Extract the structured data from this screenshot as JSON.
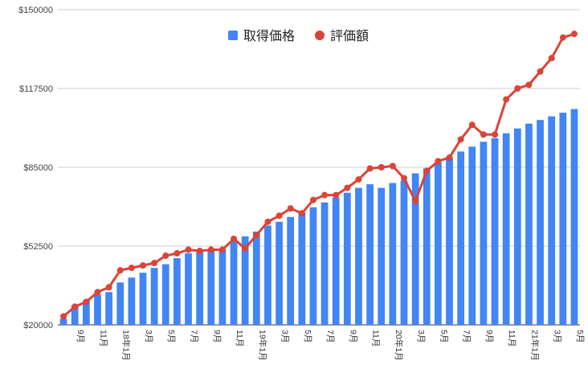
{
  "chart_data": {
    "type": "bar",
    "title": "",
    "xlabel": "",
    "ylabel": "",
    "ylim": [
      20000,
      150000
    ],
    "y_ticks": [
      "$150000",
      "$117500",
      "$85000",
      "$52500",
      "$20000"
    ],
    "y_tick_values": [
      150000,
      117500,
      85000,
      52500,
      20000
    ],
    "grid": true,
    "legend_position": "top-center",
    "x_tick_labels": [
      {
        "index": 1,
        "label": "9月"
      },
      {
        "index": 3,
        "label": "11月"
      },
      {
        "index": 5,
        "label": "18年1月"
      },
      {
        "index": 7,
        "label": "3月"
      },
      {
        "index": 9,
        "label": "5月"
      },
      {
        "index": 11,
        "label": "7月"
      },
      {
        "index": 13,
        "label": "9月"
      },
      {
        "index": 15,
        "label": "11月"
      },
      {
        "index": 17,
        "label": "19年1月"
      },
      {
        "index": 19,
        "label": "3月"
      },
      {
        "index": 21,
        "label": "5月"
      },
      {
        "index": 23,
        "label": "7月"
      },
      {
        "index": 25,
        "label": "9月"
      },
      {
        "index": 27,
        "label": "11月"
      },
      {
        "index": 29,
        "label": "20年1月"
      },
      {
        "index": 31,
        "label": "3月"
      },
      {
        "index": 33,
        "label": "5月"
      },
      {
        "index": 35,
        "label": "7月"
      },
      {
        "index": 37,
        "label": "9月"
      },
      {
        "index": 39,
        "label": "11月"
      },
      {
        "index": 41,
        "label": "21年1月"
      },
      {
        "index": 43,
        "label": "3月"
      },
      {
        "index": 45,
        "label": "5月"
      }
    ],
    "series": [
      {
        "name": "取得価格",
        "kind": "bar",
        "color": "#4285f4",
        "values": [
          22500,
          28000,
          30000,
          32500,
          33500,
          37500,
          39500,
          41500,
          43500,
          45000,
          47500,
          49500,
          50500,
          50500,
          51000,
          54500,
          56500,
          58500,
          61000,
          62500,
          64500,
          66500,
          68500,
          70500,
          72500,
          74500,
          76500,
          78000,
          76500,
          78500,
          79500,
          82500,
          84500,
          87000,
          89000,
          91500,
          93500,
          95500,
          97000,
          99000,
          101000,
          103000,
          104500,
          106000,
          107500,
          109000
        ]
      },
      {
        "name": "評価額",
        "kind": "line",
        "color": "#db4437",
        "values": [
          23500,
          27500,
          29500,
          33500,
          35500,
          42500,
          43500,
          44500,
          45500,
          48500,
          49500,
          51000,
          50500,
          51000,
          51000,
          55500,
          51500,
          57000,
          62500,
          65000,
          68000,
          66000,
          71500,
          73500,
          73500,
          76500,
          80000,
          84500,
          85000,
          85500,
          80500,
          71000,
          83500,
          87500,
          89000,
          96500,
          102500,
          98500,
          98500,
          113000,
          117500,
          119000,
          124500,
          130000,
          138500,
          140000
        ]
      }
    ]
  }
}
